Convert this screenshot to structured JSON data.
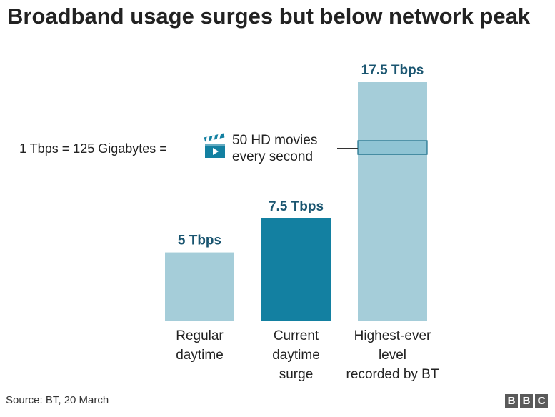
{
  "title": "Broadband usage surges but below network peak",
  "chart_data": {
    "type": "bar",
    "title": "Broadband usage surges but below network peak",
    "categories": [
      "Regular daytime",
      "Current daytime surge",
      "Highest-ever level recorded by BT"
    ],
    "category_lines": [
      [
        "Regular",
        "daytime"
      ],
      [
        "Current",
        "daytime",
        "surge"
      ],
      [
        "Highest-ever",
        "level",
        "recorded by BT"
      ]
    ],
    "values": [
      5,
      7.5,
      17.5
    ],
    "value_labels": [
      "5 Tbps",
      "7.5 Tbps",
      "17.5 Tbps"
    ],
    "unit": "Tbps",
    "highlight_index": 1,
    "colors": {
      "bar": "#a5cdd9",
      "highlight": "#1380a1",
      "value_label": "#1a5570",
      "band_fill": "#8fc4d4",
      "band_stroke": "#1a6f8a"
    },
    "annotation": {
      "left_text": "1 Tbps = 125 Gigabytes =",
      "icon": "clapperboard-icon",
      "right_lines": [
        "50 HD movies",
        "every second"
      ],
      "band_bar_index": 2
    },
    "ylim": [
      0,
      17.5
    ]
  },
  "footer": {
    "source": "Source: BT, 20 March",
    "logo_letters": [
      "B",
      "B",
      "C"
    ]
  }
}
